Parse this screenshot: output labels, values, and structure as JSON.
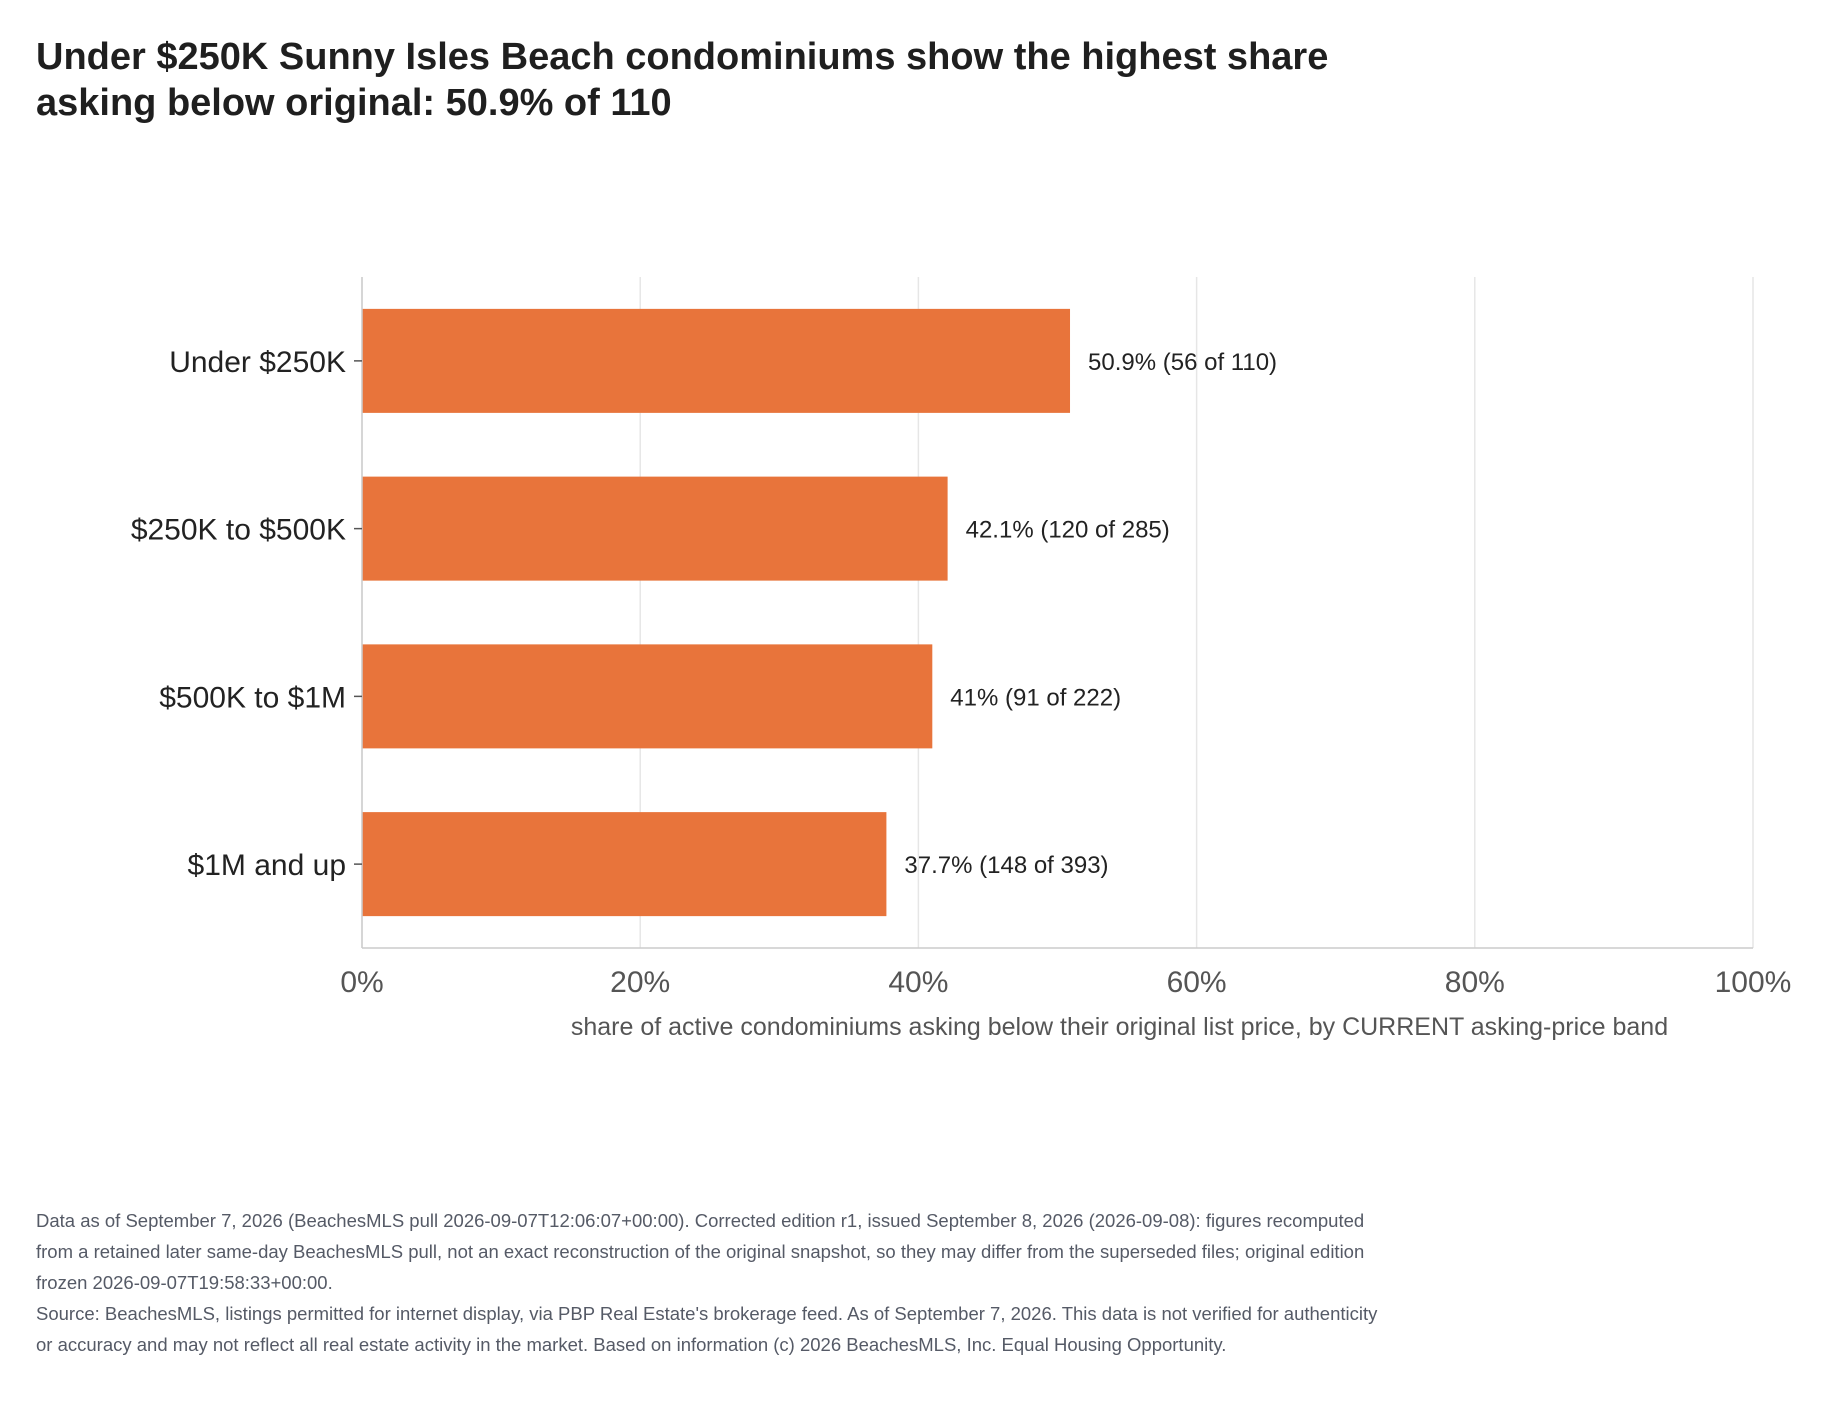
{
  "chart_data": {
    "type": "bar",
    "orientation": "horizontal",
    "title": "Under $250K Sunny Isles Beach condominiums show the highest share asking below original: 50.9% of 110",
    "xlabel": "share of active condominiums asking below their original list price, by CURRENT asking-price band",
    "ylabel": "",
    "xlim": [
      0,
      100
    ],
    "x_ticks": [
      0,
      20,
      40,
      60,
      80,
      100
    ],
    "x_tick_labels": [
      "0%",
      "20%",
      "40%",
      "60%",
      "80%",
      "100%"
    ],
    "grid": "vertical",
    "categories": [
      "Under $250K",
      "$250K to $500K",
      "$500K to $1M",
      "$1M and up"
    ],
    "values": [
      50.9,
      42.1,
      41,
      37.7
    ],
    "data_labels": [
      "50.9%  (56 of 110)",
      "42.1%  (120 of 285)",
      "41%  (91 of 222)",
      "37.7%  (148 of 393)"
    ],
    "colors": {
      "bar": "#e8743b",
      "grid": "#e6e6e6",
      "axis": "#cccccc",
      "text": "#222222",
      "muted": "#555a66"
    }
  },
  "footer": {
    "data_note": "Data as of September 7, 2026 (BeachesMLS pull 2026-09-07T12:06:07+00:00). Corrected edition r1, issued September 8, 2026 (2026-09-08): figures recomputed from a retained later same-day BeachesMLS pull, not an exact reconstruction of the original snapshot, so they may differ from the superseded files; original edition frozen 2026-09-07T19:58:33+00:00.",
    "source": "Source: BeachesMLS, listings permitted for internet display, via PBP Real Estate's brokerage feed. As of September 7, 2026. This data is not verified for authenticity or accuracy and may not reflect all real estate activity in the market. Based on information (c) 2026 BeachesMLS, Inc. Equal Housing Opportunity."
  }
}
